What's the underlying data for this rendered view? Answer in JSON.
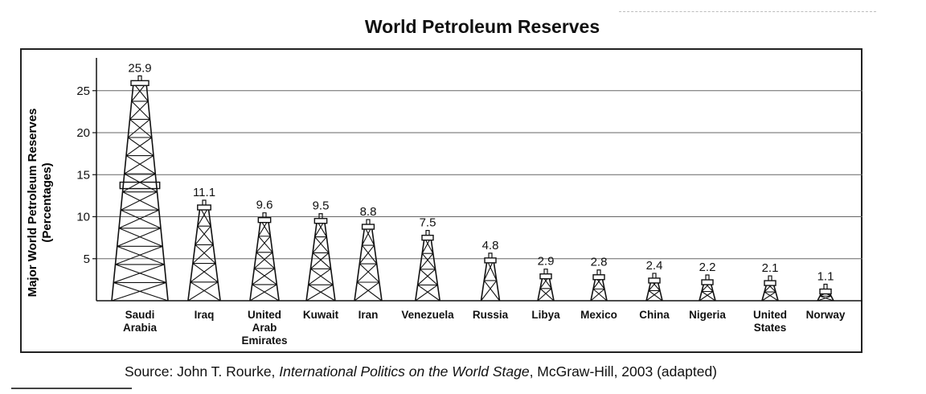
{
  "chart_data": {
    "type": "bar",
    "title": "World Petroleum Reserves",
    "ylabel_line1": "Major World Petroleum Reserves",
    "ylabel_line2": "(Percentages)",
    "xlabel": "",
    "ylim": [
      0,
      30
    ],
    "yticks": [
      5,
      10,
      15,
      20,
      25
    ],
    "grid": true,
    "categories": [
      "Saudi Arabia",
      "Iraq",
      "United Arab Emirates",
      "Kuwait",
      "Iran",
      "Venezuela",
      "Russia",
      "Libya",
      "Mexico",
      "China",
      "Nigeria",
      "United States",
      "Norway"
    ],
    "category_lines": [
      [
        "Saudi",
        "Arabia"
      ],
      [
        "Iraq"
      ],
      [
        "United",
        "Arab",
        "Emirates"
      ],
      [
        "Kuwait"
      ],
      [
        "Iran"
      ],
      [
        "Venezuela"
      ],
      [
        "Russia"
      ],
      [
        "Libya"
      ],
      [
        "Mexico"
      ],
      [
        "China"
      ],
      [
        "Nigeria"
      ],
      [
        "United",
        "States"
      ],
      [
        "Norway"
      ]
    ],
    "values": [
      25.9,
      11.1,
      9.6,
      9.5,
      8.8,
      7.5,
      4.8,
      2.9,
      2.8,
      2.4,
      2.2,
      2.1,
      1.1
    ],
    "value_labels": [
      "25.9",
      "11.1",
      "9.6",
      "9.5",
      "8.8",
      "7.5",
      "4.8",
      "2.9",
      "2.8",
      "2.4",
      "2.2",
      "2.1",
      "1.1"
    ],
    "mark_style": "oil-derrick"
  },
  "source": {
    "prefix": "Source: John T. Rourke, ",
    "work": "International Politics on the World Stage",
    "suffix": ", McGraw-Hill, 2003 (adapted)"
  },
  "colors": {
    "ink": "#111111",
    "grid": "#666666",
    "frame": "#222222",
    "background": "#ffffff"
  }
}
